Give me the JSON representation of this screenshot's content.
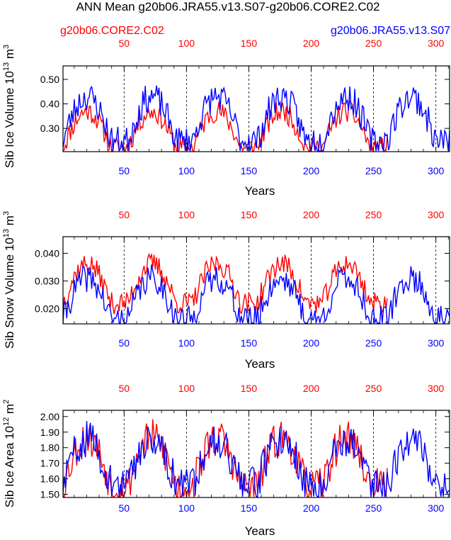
{
  "figure": {
    "title": "ANN Mean g20b06.JRA55.v13.S07-g20b06.CORE2.C02",
    "legend_red": "g20b06.CORE2.C02",
    "legend_blue": "g20b06.JRA55.v13.S07"
  },
  "colors": {
    "red": "#ff0000",
    "blue": "#0000ff",
    "axis": "#000000",
    "grid": "#000000"
  },
  "chart_data": [
    {
      "type": "line",
      "id": "ice-volume",
      "ylabel": "Sib Ice Volume 10",
      "ylabel_exp": "13",
      "ylabel_unit": "m",
      "ylabel_unit_exp": "3",
      "xlabel": "Years",
      "xlim": [
        1,
        311
      ],
      "ylim": [
        0.205,
        0.555
      ],
      "yticks": [
        0.3,
        0.4,
        0.5
      ],
      "ytick_labels": [
        "0.30",
        "0.40",
        "0.50"
      ],
      "xticks": [
        50,
        100,
        150,
        200,
        250,
        300
      ],
      "xtick_labels": [
        "50",
        "100",
        "150",
        "200",
        "250",
        "300"
      ],
      "grid_x": [
        50,
        100,
        150,
        200,
        250,
        300
      ],
      "series": [
        {
          "name": "g20b06.CORE2.C02",
          "color": "#ff0000",
          "n": 261,
          "cycle": 52,
          "base": 0.22,
          "amp": 0.2,
          "noise": 0.045,
          "seed": 11
        },
        {
          "name": "g20b06.JRA55.v13.S07",
          "color": "#0000ff",
          "n": 311,
          "cycle": 52,
          "base": 0.25,
          "amp": 0.24,
          "noise": 0.06,
          "seed": 23
        }
      ]
    },
    {
      "type": "line",
      "id": "snow-volume",
      "ylabel": "Sib Snow Volume 10",
      "ylabel_exp": "13",
      "ylabel_unit": "m",
      "ylabel_unit_exp": "3",
      "xlabel": "Years",
      "xlim": [
        1,
        311
      ],
      "ylim": [
        0.0145,
        0.046
      ],
      "yticks": [
        0.02,
        0.03,
        0.04
      ],
      "ytick_labels": [
        "0.020",
        "0.030",
        "0.040"
      ],
      "xticks": [
        50,
        100,
        150,
        200,
        250,
        300
      ],
      "xtick_labels": [
        "50",
        "100",
        "150",
        "200",
        "250",
        "300"
      ],
      "grid_x": [
        50,
        100,
        150,
        200,
        250,
        300
      ],
      "series": [
        {
          "name": "g20b06.CORE2.C02",
          "color": "#ff0000",
          "n": 261,
          "cycle": 52,
          "base": 0.022,
          "amp": 0.019,
          "noise": 0.004,
          "seed": 37
        },
        {
          "name": "g20b06.JRA55.v13.S07",
          "color": "#0000ff",
          "n": 311,
          "cycle": 52,
          "base": 0.016,
          "amp": 0.02,
          "noise": 0.005,
          "seed": 41
        }
      ]
    },
    {
      "type": "line",
      "id": "ice-area",
      "ylabel": "Sib Ice Area 10",
      "ylabel_exp": "12",
      "ylabel_unit": "m",
      "ylabel_unit_exp": "2",
      "xlabel": "Years",
      "xlim": [
        1,
        311
      ],
      "ylim": [
        1.48,
        2.04
      ],
      "yticks": [
        1.5,
        1.6,
        1.7,
        1.8,
        1.9,
        2.0
      ],
      "ytick_labels": [
        "1.50",
        "1.60",
        "1.70",
        "1.80",
        "1.90",
        "2.00"
      ],
      "xticks": [
        50,
        100,
        150,
        200,
        250,
        300
      ],
      "xtick_labels": [
        "50",
        "100",
        "150",
        "200",
        "250",
        "300"
      ],
      "grid_x": [
        50,
        100,
        150,
        200,
        250,
        300
      ],
      "series": [
        {
          "name": "g20b06.CORE2.C02",
          "color": "#ff0000",
          "n": 261,
          "cycle": 52,
          "base": 1.55,
          "amp": 0.42,
          "noise": 0.12,
          "seed": 53
        },
        {
          "name": "g20b06.JRA55.v13.S07",
          "color": "#0000ff",
          "n": 311,
          "cycle": 52,
          "base": 1.56,
          "amp": 0.4,
          "noise": 0.12,
          "seed": 59
        }
      ]
    }
  ]
}
